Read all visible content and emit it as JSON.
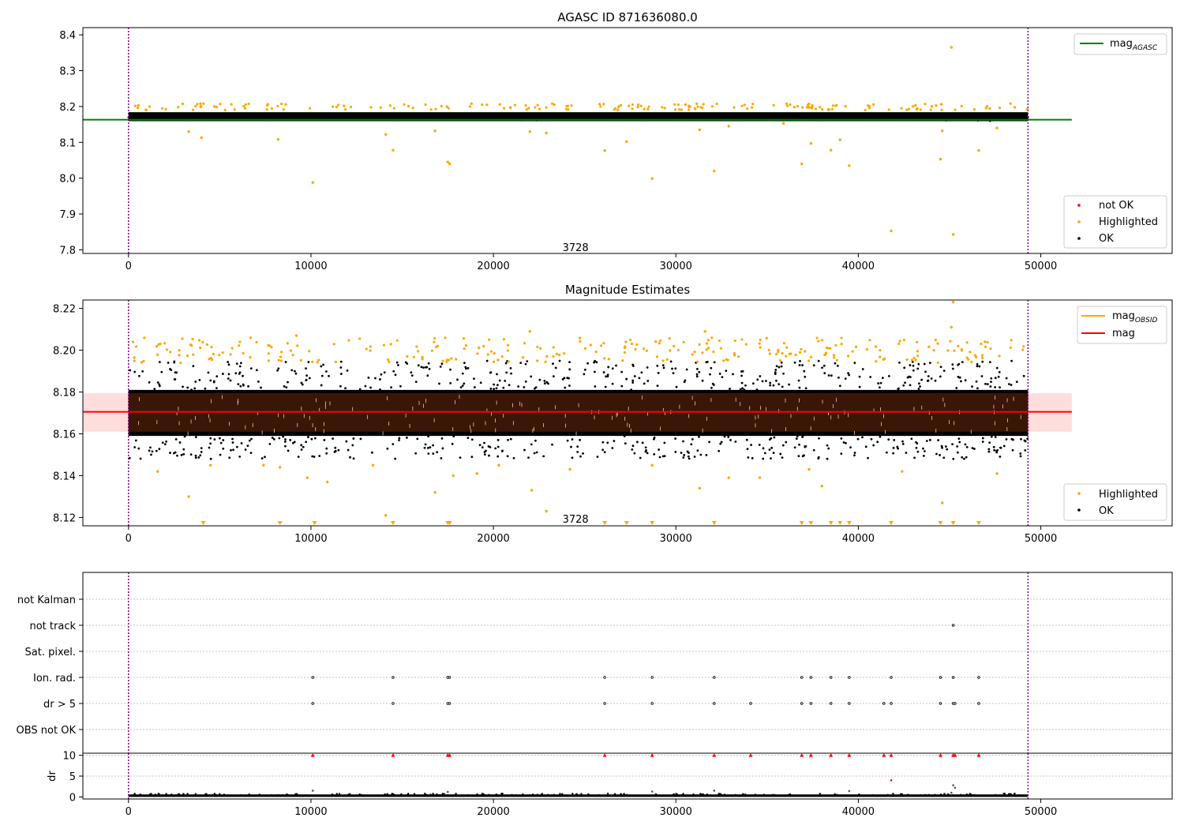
{
  "chart_data": [
    {
      "type": "scatter",
      "title": "AGASC ID 871636080.0",
      "xlim": [
        -2500,
        57200
      ],
      "ylim": [
        7.79,
        8.42
      ],
      "xticks": [
        0,
        10000,
        20000,
        30000,
        40000,
        50000
      ],
      "yticks": [
        7.8,
        7.9,
        8.0,
        8.1,
        8.2,
        8.3,
        8.4
      ],
      "vlines": [
        0,
        49300
      ],
      "annotation": {
        "text": "3728",
        "x": 24500,
        "y": 7.805
      },
      "band": {
        "x_start": 0,
        "x_end": 49300,
        "ok_low": 8.155,
        "ok_high": 8.19,
        "center": 8.168
      },
      "hlines": [
        {
          "name": "mag_AGASC",
          "y": 8.163,
          "x_start": -2500,
          "x_end": 51700,
          "color": "#008000"
        }
      ],
      "highlighted_outliers": [
        [
          3300,
          8.13
        ],
        [
          4000,
          8.113
        ],
        [
          8200,
          8.108
        ],
        [
          10100,
          7.988
        ],
        [
          14100,
          8.122
        ],
        [
          14500,
          8.078
        ],
        [
          16800,
          8.132
        ],
        [
          17500,
          8.045
        ],
        [
          17600,
          8.04
        ],
        [
          22000,
          8.13
        ],
        [
          22900,
          8.126
        ],
        [
          26100,
          8.077
        ],
        [
          27300,
          8.102
        ],
        [
          28700,
          7.999
        ],
        [
          31300,
          8.135
        ],
        [
          32100,
          8.02
        ],
        [
          32900,
          8.145
        ],
        [
          35900,
          8.153
        ],
        [
          36900,
          8.04
        ],
        [
          37400,
          8.097
        ],
        [
          38500,
          8.078
        ],
        [
          39000,
          8.107
        ],
        [
          39500,
          8.035
        ],
        [
          41800,
          7.853
        ],
        [
          44500,
          8.053
        ],
        [
          44600,
          8.132
        ],
        [
          45200,
          7.843
        ],
        [
          45100,
          8.365
        ],
        [
          46600,
          8.077
        ],
        [
          47600,
          8.14
        ]
      ],
      "legends": [
        {
          "position": "upper-right",
          "entries": [
            {
              "label": "mag",
              "subscript": "AGASC",
              "color": "#008000",
              "marker": "line"
            }
          ]
        },
        {
          "position": "lower-right",
          "entries": [
            {
              "label": "not OK",
              "color": "#ff0000",
              "marker": "dot"
            },
            {
              "label": "Highlighted",
              "color": "#ffa500",
              "marker": "dot"
            },
            {
              "label": "OK",
              "color": "#000000",
              "marker": "dot"
            }
          ]
        }
      ]
    },
    {
      "type": "scatter",
      "title": "Magnitude Estimates",
      "xlim": [
        -2500,
        57200
      ],
      "ylim": [
        8.116,
        8.224
      ],
      "xticks": [
        0,
        10000,
        20000,
        30000,
        40000,
        50000
      ],
      "yticks": [
        8.12,
        8.14,
        8.16,
        8.18,
        8.2,
        8.22
      ],
      "ytick_labels": [
        "8.12",
        "8.14",
        "8.16",
        "8.18",
        "8.20",
        "8.22"
      ],
      "vlines": [
        0,
        49300
      ],
      "annotation": {
        "text": "3728",
        "x": 24500,
        "y": 8.119
      },
      "mag_band": {
        "low": 8.161,
        "high": 8.1795,
        "x_start": -2500,
        "x_end": 51700,
        "color": "#ffdddd"
      },
      "hlines": [
        {
          "name": "mag",
          "y": 8.1705,
          "x_start": -2500,
          "x_end": 51700,
          "color": "#ff0000"
        }
      ],
      "highlighted_outliers": [
        [
          1600,
          8.142
        ],
        [
          3300,
          8.13
        ],
        [
          4500,
          8.145
        ],
        [
          7400,
          8.145
        ],
        [
          8300,
          8.144
        ],
        [
          9800,
          8.139
        ],
        [
          10900,
          8.137
        ],
        [
          13400,
          8.145
        ],
        [
          14100,
          8.121
        ],
        [
          16800,
          8.132
        ],
        [
          17800,
          8.14
        ],
        [
          19100,
          8.141
        ],
        [
          20300,
          8.145
        ],
        [
          22100,
          8.133
        ],
        [
          22900,
          8.123
        ],
        [
          24200,
          8.143
        ],
        [
          28700,
          8.145
        ],
        [
          31300,
          8.134
        ],
        [
          32900,
          8.139
        ],
        [
          34600,
          8.139
        ],
        [
          37300,
          8.143
        ],
        [
          38000,
          8.135
        ],
        [
          42400,
          8.142
        ],
        [
          44600,
          8.127
        ],
        [
          47600,
          8.141
        ]
      ],
      "below_range_markers_x": [
        4100,
        8300,
        10200,
        14500,
        17500,
        17600,
        26100,
        27300,
        28700,
        32100,
        36900,
        37400,
        38500,
        39000,
        39500,
        41800,
        44500,
        45200,
        46600
      ],
      "legends": [
        {
          "position": "upper-right",
          "entries": [
            {
              "label": "mag",
              "subscript": "OBSID",
              "color": "#ffa500",
              "marker": "line"
            },
            {
              "label": "mag",
              "color": "#ff0000",
              "marker": "line"
            }
          ]
        },
        {
          "position": "lower-right",
          "entries": [
            {
              "label": "Highlighted",
              "color": "#ffa500",
              "marker": "dot"
            },
            {
              "label": "OK",
              "color": "#000000",
              "marker": "dot"
            }
          ]
        }
      ]
    },
    {
      "type": "scatter",
      "xlim": [
        -2500,
        57200
      ],
      "xticks": [
        0,
        10000,
        20000,
        30000,
        40000,
        50000
      ],
      "vlines": [
        0,
        49300
      ],
      "flag_rows": [
        "not Kalman",
        "not track",
        "Sat. pixel.",
        "Ion. rad.",
        "dr > 5",
        "OBS not OK"
      ],
      "flag_points": {
        "not track": [
          45200
        ],
        "Ion. rad.": [
          10100,
          14500,
          17500,
          17600,
          26100,
          28700,
          32100,
          36900,
          37400,
          38500,
          39500,
          41800,
          44500,
          45200,
          46600
        ],
        "dr > 5": [
          10100,
          14500,
          17500,
          17600,
          26100,
          28700,
          32100,
          34100,
          36900,
          37400,
          38500,
          39500,
          41400,
          41800,
          44500,
          45200,
          45300,
          46600
        ]
      }
    },
    {
      "type": "scatter",
      "ylabel": "dr",
      "xlim": [
        -2500,
        57200
      ],
      "ylim": [
        -0.5,
        10.5
      ],
      "xticks": [
        0,
        10000,
        20000,
        30000,
        40000,
        50000
      ],
      "yticks": [
        0,
        5,
        10
      ],
      "vlines": [
        0,
        49300
      ],
      "capped_points_x": [
        10100,
        14500,
        17500,
        17600,
        26100,
        28700,
        32100,
        34100,
        36900,
        37400,
        38500,
        39500,
        41400,
        41800,
        44500,
        45200,
        45300,
        46600
      ],
      "capped_value": 10,
      "mid_points": [
        [
          10100,
          1.5
        ],
        [
          17500,
          1.2
        ],
        [
          28700,
          1.3
        ],
        [
          32100,
          1.5
        ],
        [
          39500,
          1.4
        ],
        [
          41800,
          4.0
        ],
        [
          45200,
          2.8
        ],
        [
          45300,
          2.2
        ],
        [
          45100,
          1.0
        ]
      ],
      "baseline": {
        "x_start": 0,
        "x_end": 49300,
        "low": 0.0,
        "high": 0.6
      }
    }
  ]
}
